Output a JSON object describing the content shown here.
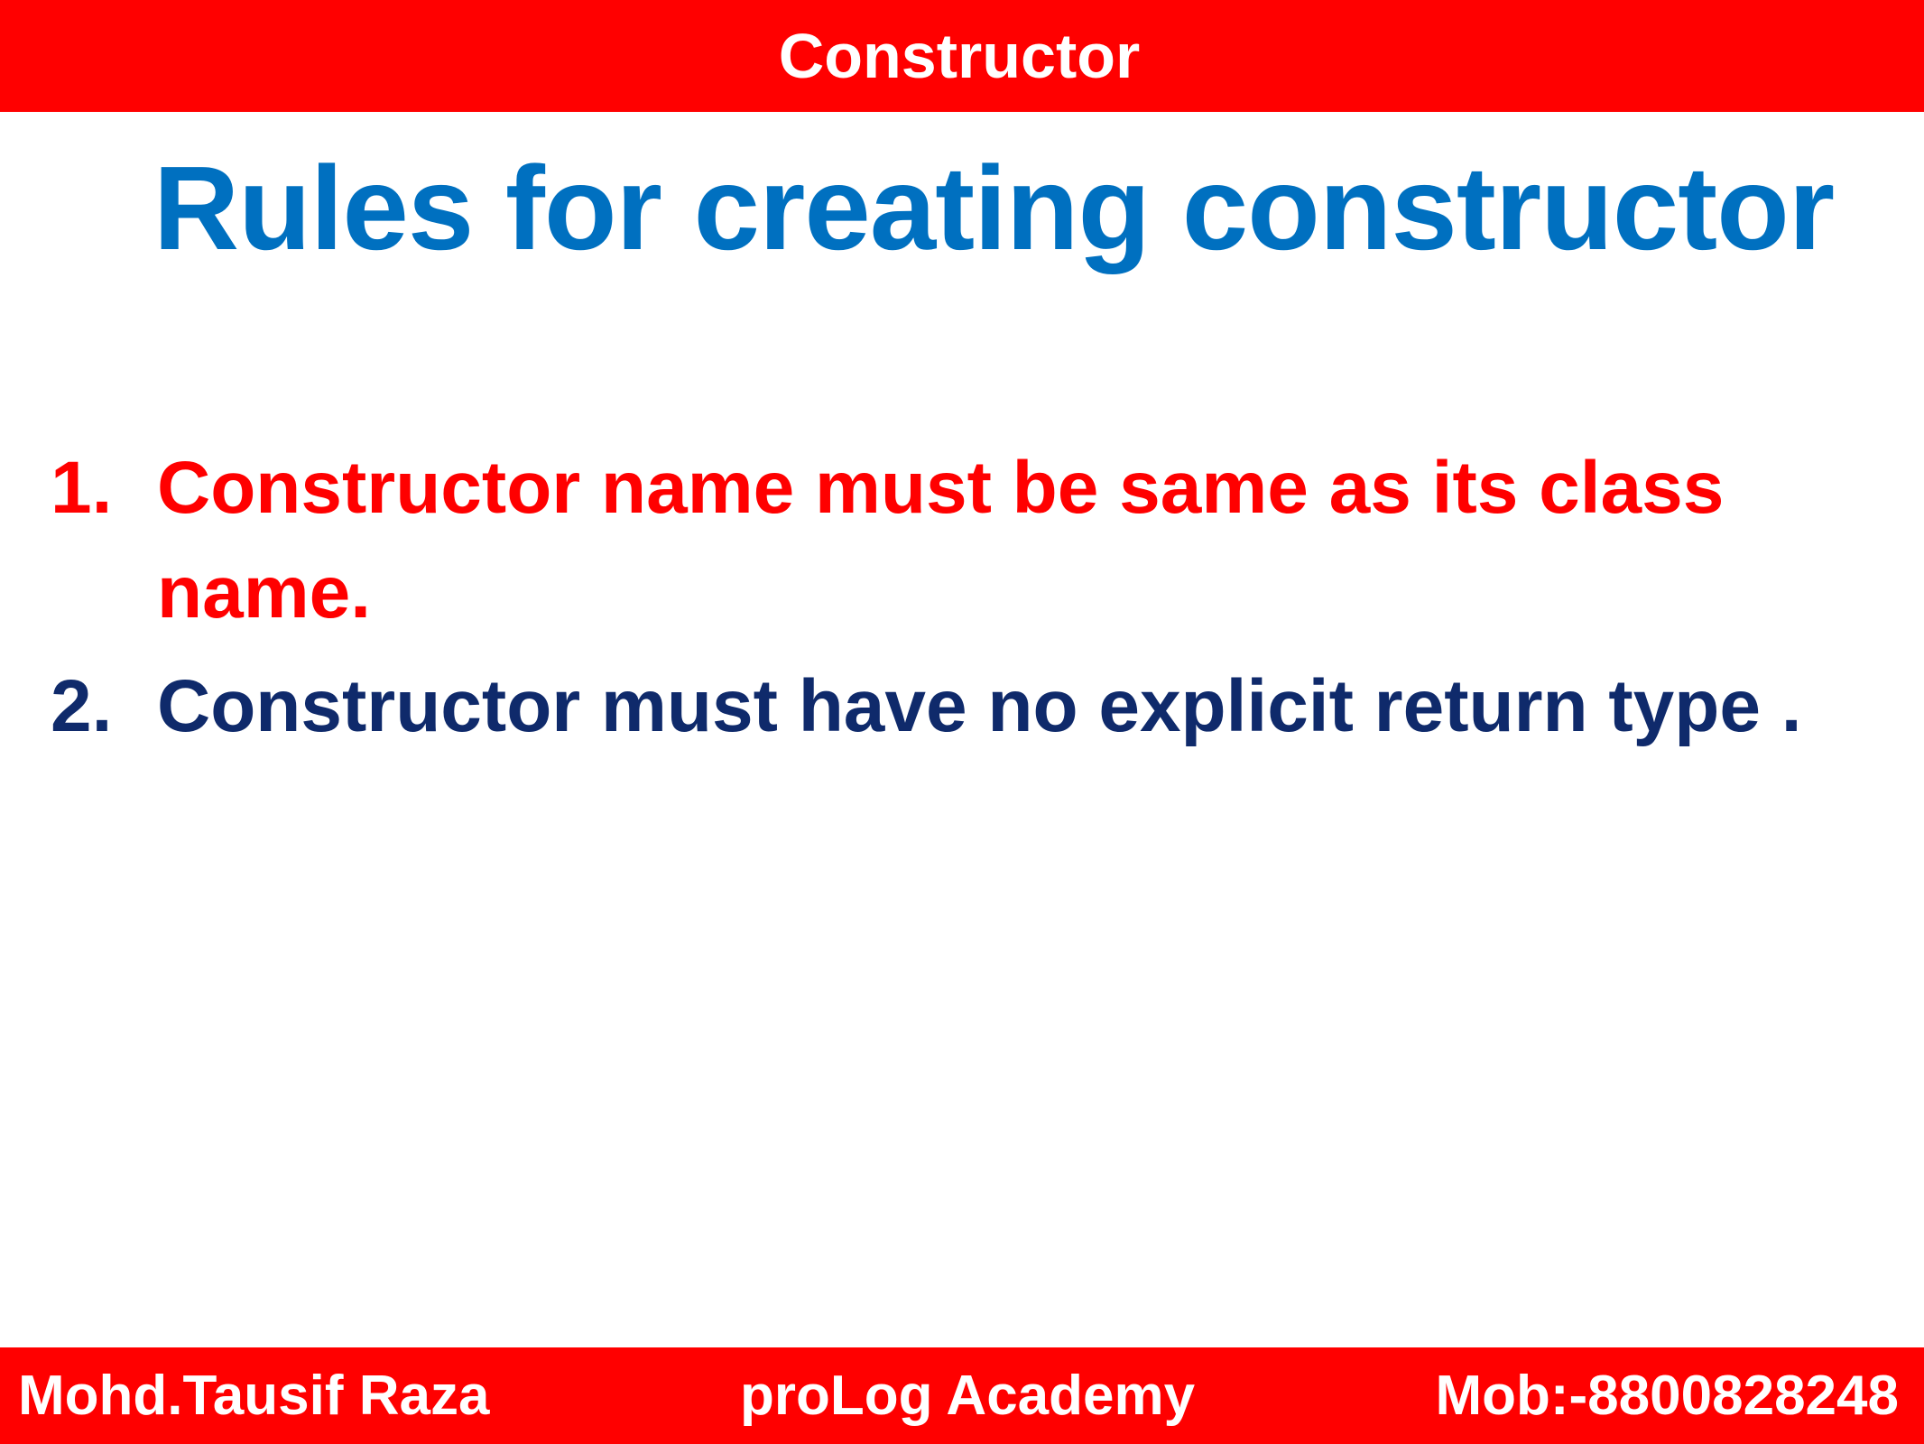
{
  "header": {
    "title": "Constructor"
  },
  "slide": {
    "title": "Rules for creating constructor",
    "rules": [
      {
        "number": "1.",
        "text": "Constructor name must be same as its class name."
      },
      {
        "number": "2.",
        "text": "Constructor must have no explicit return type ."
      }
    ]
  },
  "footer": {
    "author": "Mohd.Tausif Raza",
    "academy": "proLog Academy",
    "contact": "Mob:-8800828248"
  },
  "colors": {
    "bar_red": "#ff0000",
    "title_blue": "#0070c0",
    "rule_dark_blue": "#0f2a6b"
  }
}
